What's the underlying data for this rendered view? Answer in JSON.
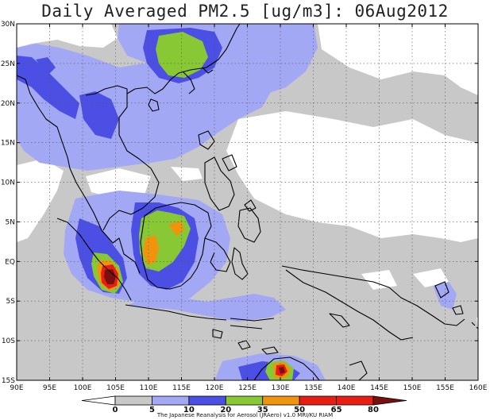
{
  "title": "Daily Averaged PM2.5 [ug/m3]: 06Aug2012",
  "credit": "The Japanese Reanalysis for Aerosol (JRAero) v1.0 MRI/KU RIAM",
  "map": {
    "lon_range": [
      90,
      160
    ],
    "lat_range": [
      -15,
      30
    ],
    "lon_ticks": [
      "90E",
      "95E",
      "100E",
      "105E",
      "110E",
      "115E",
      "120E",
      "125E",
      "130E",
      "135E",
      "140E",
      "145E",
      "150E",
      "155E",
      "160E"
    ],
    "lat_ticks": [
      "30N",
      "25N",
      "20N",
      "15N",
      "10N",
      "5N",
      "EQ",
      "5S",
      "10S",
      "15S"
    ],
    "gridlines": "dotted",
    "coastline_color": "#000000"
  },
  "colorbar": {
    "labels": [
      "0",
      "5",
      "10",
      "20",
      "35",
      "50",
      "65",
      "80"
    ],
    "colors": [
      "#ffffff",
      "#c8c8c8",
      "#a3a8f5",
      "#4b4fe3",
      "#87c834",
      "#f0940e",
      "#e81e14",
      "#7a0f0f"
    ],
    "extend": "both"
  },
  "field_colors": {
    "background": "#c8c8c8",
    "clean": "#ffffff",
    "light": "#a3a8f5",
    "medium": "#4b4fe3",
    "high": "#87c834",
    "very_high": "#f0940e",
    "extreme": "#e81e14",
    "max": "#7a0f0f"
  }
}
